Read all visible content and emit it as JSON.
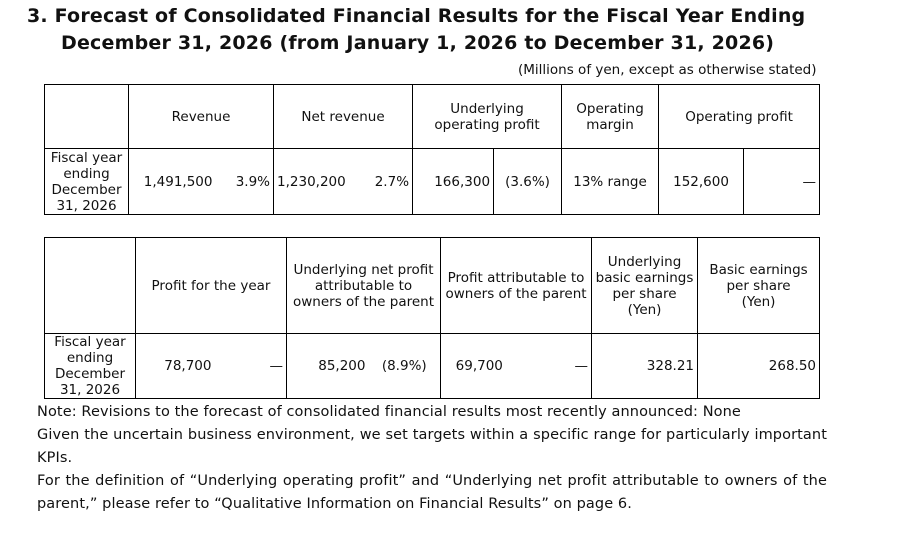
{
  "heading": {
    "line1": "3. Forecast of Consolidated Financial Results for the Fiscal Year Ending",
    "line2": "December 31, 2026 (from January 1, 2026 to December 31, 2026)"
  },
  "unit_note": "(Millions of yen, except as otherwise stated)",
  "table1": {
    "headers": [
      "Revenue",
      "Net revenue",
      "Underlying operating profit",
      "Operating margin",
      "Operating profit"
    ],
    "row_label": "Fiscal year ending December 31, 2026",
    "revenue": "1,491,500",
    "revenue_change": "3.9%",
    "net_revenue": "1,230,200",
    "net_revenue_change": "2.7%",
    "underlying_op": "166,300",
    "underlying_op_change": "(3.6%)",
    "op_margin": "13% range",
    "op_profit": "152,600",
    "op_profit_change": "—"
  },
  "table2": {
    "headers": [
      "Profit for the year",
      "Underlying net profit attributable to owners of the parent",
      "Profit attributable to owners of the parent",
      "Underlying basic earnings per share (Yen)",
      "Basic earnings per share (Yen)"
    ],
    "row_label": "Fiscal year ending December 31, 2026",
    "profit_year": "78,700",
    "profit_year_change": "—",
    "underlying_net": "85,200",
    "underlying_net_change": "(8.9%)",
    "profit_owners": "69,700",
    "profit_owners_change": "—",
    "underlying_eps": "328.21",
    "basic_eps": "268.50"
  },
  "notes": {
    "line1": "Note: Revisions to the forecast of consolidated financial results most recently announced: None",
    "line2": "Given the uncertain business environment, we set targets within a specific range for particularly important KPIs.",
    "line3": "For the definition of “Underlying operating profit” and “Underlying net profit attributable to owners of the parent,” please refer to “Qualitative Information on Financial Results” on page 6."
  }
}
